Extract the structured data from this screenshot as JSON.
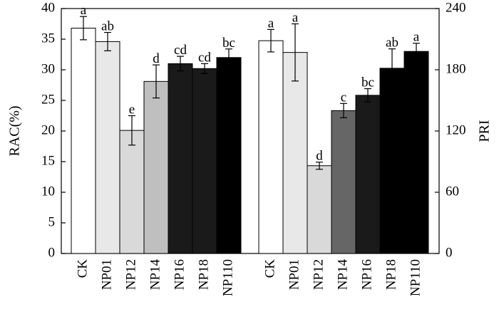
{
  "chart_data": {
    "type": "bar",
    "categories": [
      "CK",
      "NP01",
      "NP12",
      "NP14",
      "NP16",
      "NP18",
      "NP110"
    ],
    "fill_colors": [
      "#ffffff",
      "#e8e8e8",
      "#d9d9d9",
      "#bfbfbf",
      "#1a1a1a",
      "#1a1a1a",
      "#000000"
    ],
    "pri_fill_colors": [
      "#ffffff",
      "#e8e8e8",
      "#d9d9d9",
      "#666666",
      "#1a1a1a",
      "#000000",
      "#000000"
    ],
    "left": {
      "ylabel": "RAC(%)",
      "ylim": [
        0,
        40
      ],
      "yticks": [
        "0",
        "5",
        "10",
        "15",
        "20",
        "25",
        "30",
        "35",
        "40"
      ],
      "values": [
        36.8,
        34.6,
        20.1,
        28.1,
        31.0,
        30.2,
        32.0
      ],
      "errors": [
        1.9,
        1.5,
        2.4,
        2.7,
        1.2,
        0.8,
        1.4
      ],
      "significance": [
        "a",
        "ab",
        "e",
        "d",
        "cd",
        "cd",
        "bc"
      ]
    },
    "right": {
      "ylabel": "PRI",
      "ylim": [
        0,
        240
      ],
      "yticks": [
        "0",
        "60",
        "120",
        "180",
        "240"
      ],
      "values": [
        208.5,
        197.0,
        86.0,
        140.0,
        155.0,
        181.5,
        198.0
      ],
      "errors": [
        11.0,
        28.0,
        3.5,
        7.0,
        6.5,
        19.0,
        8.0
      ],
      "significance": [
        "a",
        "a",
        "d",
        "c",
        "bc",
        "ab",
        "a"
      ]
    }
  }
}
